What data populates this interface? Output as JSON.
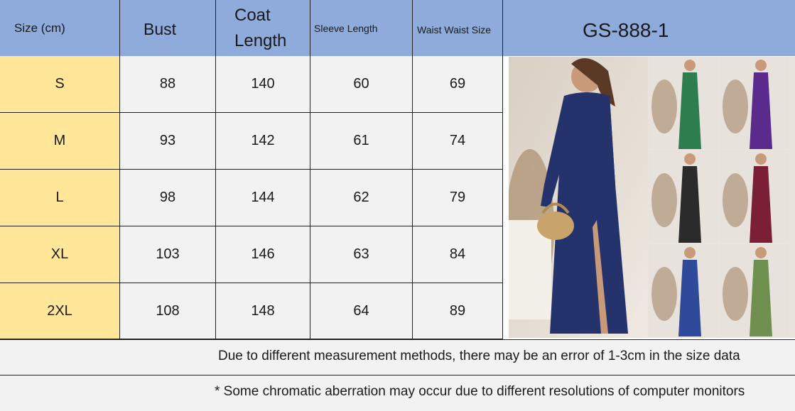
{
  "table": {
    "headers": {
      "size": "Size (cm)",
      "bust": "Bust",
      "coat_line1": "Coat",
      "coat_line2": "Length",
      "sleeve": "Sleeve Length",
      "waist": "Waist Waist Size",
      "model": "GS-888-1"
    },
    "rows": [
      {
        "size": "S",
        "bust": "88",
        "coat": "140",
        "sleeve": "60",
        "waist": "69"
      },
      {
        "size": "M",
        "bust": "93",
        "coat": "142",
        "sleeve": "61",
        "waist": "74"
      },
      {
        "size": "L",
        "bust": "98",
        "coat": "144",
        "sleeve": "62",
        "waist": "79"
      },
      {
        "size": "XL",
        "bust": "103",
        "coat": "146",
        "sleeve": "63",
        "waist": "84"
      },
      {
        "size": "2XL",
        "bust": "108",
        "coat": "148",
        "sleeve": "64",
        "waist": "89"
      }
    ]
  },
  "notes": {
    "line1": "Due to different measurement methods, there may be an error of 1-3cm in the size data",
    "line2": "* Some chromatic aberration may occur due to different resolutions of computer monitors"
  },
  "colors": {
    "header_bg": "#8eabdc",
    "size_bg": "#ffe699",
    "cell_bg": "#f2f2f2",
    "dress_main": "#24336b",
    "dress_variants": [
      "#2e7d4f",
      "#5a2a8c",
      "#2b2b2b",
      "#7a1f35",
      "#2f4a9a",
      "#6f8f4e"
    ]
  }
}
